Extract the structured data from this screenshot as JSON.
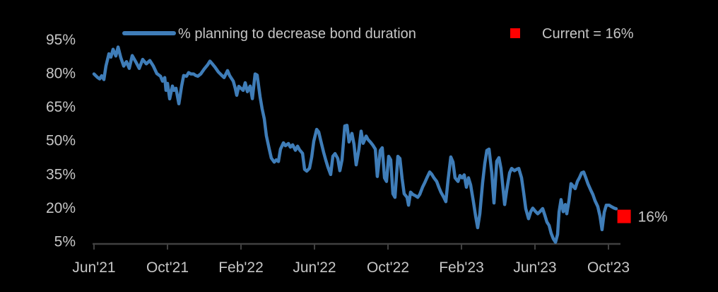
{
  "colors": {
    "background": "#000000",
    "line": "#3F7DB8",
    "marker": "#FF0000",
    "text": "#C6C6C6",
    "axis": "#404040"
  },
  "legend": {
    "series_label": "% planning to decrease bond duration",
    "current_label": "Current = 16%"
  },
  "chart_data": {
    "type": "line",
    "title": "",
    "series_name": "% planning to decrease bond duration",
    "x_unit": "months since Jun 2021, weekly survey data",
    "x_tick_labels": [
      "Jun'21",
      "Oct'21",
      "Feb'22",
      "Jun'22",
      "Oct'22",
      "Feb'23",
      "Jun'23",
      "Oct'23"
    ],
    "x_tick_months": [
      0,
      4,
      8,
      12,
      16,
      20,
      24,
      28
    ],
    "y_ticks": [
      5,
      20,
      35,
      50,
      65,
      80,
      95
    ],
    "y_tick_labels": [
      "5%",
      "20%",
      "35%",
      "50%",
      "65%",
      "80%",
      "95%"
    ],
    "ylim": [
      5,
      95
    ],
    "xlim_months": [
      0,
      28.7
    ],
    "grid": false,
    "legend_position": "top",
    "current_value": 16,
    "end_label": "16%",
    "current_marker_month": 28.85,
    "points": [
      [
        0.0,
        79.5
      ],
      [
        0.19,
        78.0
      ],
      [
        0.31,
        77.3
      ],
      [
        0.42,
        78.7
      ],
      [
        0.54,
        77.0
      ],
      [
        0.65,
        83.0
      ],
      [
        0.81,
        88.5
      ],
      [
        0.92,
        87.0
      ],
      [
        1.04,
        90.5
      ],
      [
        1.19,
        87.5
      ],
      [
        1.31,
        91.5
      ],
      [
        1.46,
        86.7
      ],
      [
        1.62,
        83.0
      ],
      [
        1.77,
        85.0
      ],
      [
        1.92,
        82.0
      ],
      [
        2.08,
        87.7
      ],
      [
        2.27,
        85.0
      ],
      [
        2.46,
        82.0
      ],
      [
        2.65,
        86.0
      ],
      [
        2.85,
        84.0
      ],
      [
        3.04,
        85.5
      ],
      [
        3.23,
        83.0
      ],
      [
        3.42,
        79.7
      ],
      [
        3.62,
        78.5
      ],
      [
        3.73,
        76.3
      ],
      [
        3.85,
        77.9
      ],
      [
        3.92,
        72.2
      ],
      [
        4.0,
        75.3
      ],
      [
        4.12,
        68.4
      ],
      [
        4.27,
        74.1
      ],
      [
        4.35,
        72.2
      ],
      [
        4.46,
        73.1
      ],
      [
        4.62,
        66.2
      ],
      [
        4.77,
        74.1
      ],
      [
        4.88,
        78.8
      ],
      [
        5.04,
        78.5
      ],
      [
        5.15,
        80.1
      ],
      [
        5.27,
        79.5
      ],
      [
        5.42,
        79.5
      ],
      [
        5.54,
        78.8
      ],
      [
        5.65,
        78.5
      ],
      [
        5.81,
        79.5
      ],
      [
        6.0,
        81.7
      ],
      [
        6.19,
        83.6
      ],
      [
        6.31,
        85.2
      ],
      [
        6.42,
        84.2
      ],
      [
        6.58,
        82.6
      ],
      [
        6.77,
        80.4
      ],
      [
        6.96,
        78.8
      ],
      [
        7.08,
        77.9
      ],
      [
        7.27,
        81.0
      ],
      [
        7.38,
        78.8
      ],
      [
        7.58,
        76.3
      ],
      [
        7.69,
        73.1
      ],
      [
        7.77,
        70.0
      ],
      [
        7.88,
        74.0
      ],
      [
        8.12,
        72.2
      ],
      [
        8.23,
        75.6
      ],
      [
        8.35,
        71.6
      ],
      [
        8.5,
        74.1
      ],
      [
        8.62,
        68.5
      ],
      [
        8.77,
        79.5
      ],
      [
        8.88,
        79.0
      ],
      [
        9.04,
        69.4
      ],
      [
        9.15,
        64.0
      ],
      [
        9.27,
        59.5
      ],
      [
        9.38,
        52.0
      ],
      [
        9.54,
        46.0
      ],
      [
        9.65,
        42.0
      ],
      [
        9.81,
        40.2
      ],
      [
        9.92,
        41.2
      ],
      [
        10.04,
        40.5
      ],
      [
        10.15,
        46.0
      ],
      [
        10.31,
        48.8
      ],
      [
        10.42,
        47.5
      ],
      [
        10.58,
        48.5
      ],
      [
        10.69,
        46.9
      ],
      [
        10.81,
        47.9
      ],
      [
        10.96,
        45.5
      ],
      [
        11.08,
        47.3
      ],
      [
        11.19,
        45.7
      ],
      [
        11.35,
        44.1
      ],
      [
        11.46,
        37.0
      ],
      [
        11.58,
        36.2
      ],
      [
        11.73,
        37.5
      ],
      [
        11.85,
        42.5
      ],
      [
        11.96,
        49.5
      ],
      [
        12.12,
        54.8
      ],
      [
        12.23,
        53.6
      ],
      [
        12.35,
        49.5
      ],
      [
        12.5,
        44.5
      ],
      [
        12.62,
        41.0
      ],
      [
        12.73,
        38.0
      ],
      [
        12.88,
        34.7
      ],
      [
        13.0,
        42.8
      ],
      [
        13.12,
        44.0
      ],
      [
        13.27,
        41.8
      ],
      [
        13.38,
        36.4
      ],
      [
        13.5,
        41.2
      ],
      [
        13.65,
        56.3
      ],
      [
        13.77,
        56.6
      ],
      [
        13.88,
        49.2
      ],
      [
        14.04,
        53.0
      ],
      [
        14.15,
        48.2
      ],
      [
        14.27,
        39.0
      ],
      [
        14.42,
        46.0
      ],
      [
        14.54,
        54.0
      ],
      [
        14.65,
        48.6
      ],
      [
        14.81,
        51.8
      ],
      [
        14.92,
        50.2
      ],
      [
        15.04,
        49.2
      ],
      [
        15.19,
        47.6
      ],
      [
        15.31,
        46.0
      ],
      [
        15.42,
        33.8
      ],
      [
        15.58,
        45.4
      ],
      [
        15.69,
        46.6
      ],
      [
        15.81,
        33.2
      ],
      [
        15.92,
        31.6
      ],
      [
        16.04,
        42.8
      ],
      [
        16.15,
        41.2
      ],
      [
        16.27,
        26.1
      ],
      [
        16.38,
        24.5
      ],
      [
        16.54,
        42.8
      ],
      [
        16.65,
        41.8
      ],
      [
        16.77,
        32.9
      ],
      [
        16.88,
        26.1
      ],
      [
        17.04,
        24.5
      ],
      [
        17.12,
        21.0
      ],
      [
        17.23,
        26.8
      ],
      [
        17.35,
        25.8
      ],
      [
        17.5,
        25.2
      ],
      [
        17.62,
        24.5
      ],
      [
        17.73,
        25.8
      ],
      [
        17.88,
        29.0
      ],
      [
        18.0,
        31.0
      ],
      [
        18.12,
        33.2
      ],
      [
        18.27,
        35.8
      ],
      [
        18.38,
        34.8
      ],
      [
        18.5,
        33.2
      ],
      [
        18.65,
        31.6
      ],
      [
        18.77,
        29.0
      ],
      [
        18.88,
        26.8
      ],
      [
        19.04,
        24.5
      ],
      [
        19.15,
        22.6
      ],
      [
        19.27,
        32.2
      ],
      [
        19.42,
        42.5
      ],
      [
        19.54,
        40.2
      ],
      [
        19.65,
        33.2
      ],
      [
        19.81,
        31.6
      ],
      [
        19.92,
        34.2
      ],
      [
        20.04,
        33.2
      ],
      [
        20.15,
        34.5
      ],
      [
        20.27,
        29.0
      ],
      [
        20.38,
        33.2
      ],
      [
        20.5,
        30.0
      ],
      [
        20.65,
        22.6
      ],
      [
        20.77,
        16.2
      ],
      [
        20.88,
        11.0
      ],
      [
        21.0,
        17.2
      ],
      [
        21.15,
        31.0
      ],
      [
        21.27,
        39.6
      ],
      [
        21.38,
        45.4
      ],
      [
        21.5,
        46.0
      ],
      [
        21.65,
        35.4
      ],
      [
        21.77,
        22.0
      ],
      [
        21.92,
        40.6
      ],
      [
        22.04,
        42.2
      ],
      [
        22.15,
        37.4
      ],
      [
        22.35,
        21.3
      ],
      [
        22.46,
        27.7
      ],
      [
        22.62,
        35.4
      ],
      [
        22.73,
        37.4
      ],
      [
        22.88,
        36.4
      ],
      [
        23.0,
        37.0
      ],
      [
        23.12,
        37.4
      ],
      [
        23.27,
        33.2
      ],
      [
        23.38,
        26.8
      ],
      [
        23.5,
        19.4
      ],
      [
        23.65,
        15.0
      ],
      [
        23.77,
        18.1
      ],
      [
        23.88,
        19.7
      ],
      [
        24.04,
        18.1
      ],
      [
        24.15,
        17.2
      ],
      [
        24.27,
        18.1
      ],
      [
        24.42,
        19.5
      ],
      [
        24.54,
        16.5
      ],
      [
        24.65,
        13.5
      ],
      [
        24.77,
        12.0
      ],
      [
        24.88,
        8.5
      ],
      [
        25.0,
        6.0
      ],
      [
        25.12,
        4.5
      ],
      [
        25.23,
        8.0
      ],
      [
        25.31,
        18.0
      ],
      [
        25.42,
        23.5
      ],
      [
        25.54,
        18.1
      ],
      [
        25.65,
        21.3
      ],
      [
        25.73,
        17.2
      ],
      [
        25.85,
        23.0
      ],
      [
        25.96,
        30.6
      ],
      [
        26.08,
        29.5
      ],
      [
        26.19,
        28.4
      ],
      [
        26.31,
        31.6
      ],
      [
        26.42,
        33.2
      ],
      [
        26.54,
        35.4
      ],
      [
        26.65,
        35.8
      ],
      [
        26.77,
        33.2
      ],
      [
        26.88,
        30.6
      ],
      [
        27.04,
        27.7
      ],
      [
        27.15,
        25.8
      ],
      [
        27.27,
        23.0
      ],
      [
        27.42,
        20.4
      ],
      [
        27.54,
        16.2
      ],
      [
        27.65,
        10.1
      ],
      [
        27.77,
        17.8
      ],
      [
        27.88,
        21.0
      ],
      [
        28.04,
        21.0
      ],
      [
        28.15,
        20.4
      ],
      [
        28.31,
        19.7
      ],
      [
        28.42,
        19.4
      ]
    ]
  }
}
